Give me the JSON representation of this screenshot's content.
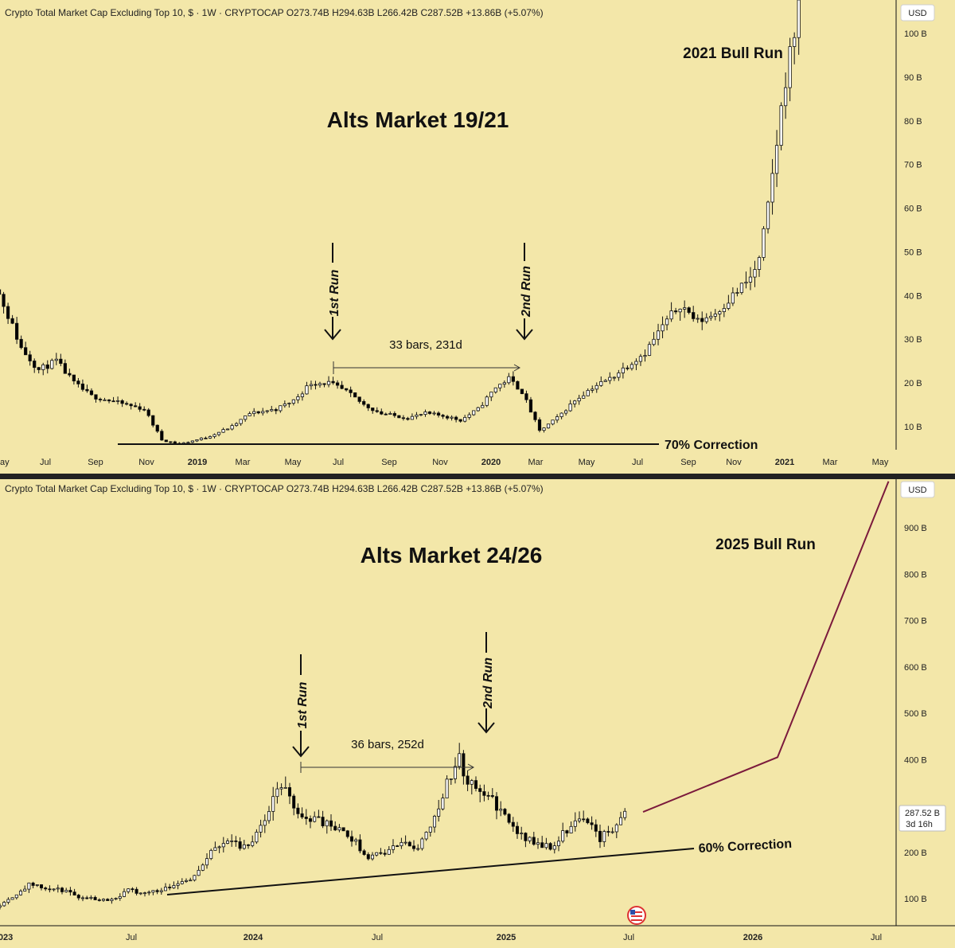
{
  "colors": {
    "bg": "#f3e7a9",
    "candle_up": "#ffffff",
    "candle_down": "#000000",
    "projection": "#7b1a3c"
  },
  "chart_data": [
    {
      "type": "candlestick",
      "header": "Crypto Total Market Cap Excluding Top 10, $ · 1W · CRYPTOCAP  O273.74B  H294.63B  L266.42B  C287.52B  +13.86B (+5.07%)",
      "currency_label": "USD",
      "title": "Alts Market 19/21",
      "annotations": {
        "bull_run": "2021 Bull Run",
        "first_run": "1st Run",
        "second_run": "2nd Run",
        "measure": "33 bars, 231d",
        "correction": "70% Correction"
      },
      "y_ticks": [
        "10 B",
        "20 B",
        "30 B",
        "40 B",
        "50 B",
        "60 B",
        "70 B",
        "80 B",
        "90 B",
        "100 B"
      ],
      "y_tick_values": [
        10,
        20,
        30,
        40,
        50,
        60,
        70,
        80,
        90,
        100
      ],
      "x_ticks": [
        "ay",
        "Jul",
        "Sep",
        "Nov",
        "2019",
        "Mar",
        "May",
        "Jul",
        "Sep",
        "Nov",
        "2020",
        "Mar",
        "May",
        "Jul",
        "Sep",
        "Nov",
        "2021",
        "Mar",
        "May"
      ],
      "ylim": [
        4,
        104
      ],
      "bars": 166,
      "anchors": [
        [
          0,
          47
        ],
        [
          4,
          38
        ],
        [
          8,
          28
        ],
        [
          12,
          23
        ],
        [
          16,
          25
        ],
        [
          20,
          20
        ],
        [
          24,
          17
        ],
        [
          28,
          16
        ],
        [
          32,
          15
        ],
        [
          36,
          14
        ],
        [
          40,
          7
        ],
        [
          44,
          6
        ],
        [
          50,
          7.5
        ],
        [
          56,
          10
        ],
        [
          60,
          13
        ],
        [
          66,
          14
        ],
        [
          70,
          16
        ],
        [
          74,
          20
        ],
        [
          78,
          20
        ],
        [
          82,
          18
        ],
        [
          86,
          15
        ],
        [
          90,
          13
        ],
        [
          96,
          12
        ],
        [
          100,
          13
        ],
        [
          104,
          12.5
        ],
        [
          108,
          11.5
        ],
        [
          112,
          14
        ],
        [
          116,
          19
        ],
        [
          119,
          21
        ],
        [
          122,
          18
        ],
        [
          126,
          9
        ],
        [
          130,
          12
        ],
        [
          134,
          16
        ],
        [
          138,
          19
        ],
        [
          142,
          21
        ],
        [
          146,
          24
        ],
        [
          150,
          27
        ],
        [
          154,
          33
        ],
        [
          158,
          38
        ],
        [
          162,
          34
        ],
        [
          166,
          36
        ],
        [
          170,
          40
        ],
        [
          174,
          44
        ],
        [
          176,
          48
        ],
        [
          178,
          60
        ],
        [
          180,
          75
        ],
        [
          182,
          90
        ],
        [
          184,
          100
        ],
        [
          186,
          140
        ]
      ],
      "ohlc_note": "Weekly candles May 2018 – Feb 2021; values approximate, billions USD"
    },
    {
      "type": "candlestick",
      "header": "Crypto Total Market Cap Excluding Top 10, $ · 1W · CRYPTOCAP  O273.74B  H294.63B  L266.42B  C287.52B  +13.86B (+5.07%)",
      "currency_label": "USD",
      "title": "Alts Market 24/26",
      "annotations": {
        "bull_run": "2025 Bull Run",
        "first_run": "1st Run",
        "second_run": "2nd Run",
        "measure": "36 bars, 252d",
        "correction": "60% Correction"
      },
      "last_price": "287.52 B",
      "countdown": "3d 16h",
      "y_ticks": [
        "100 B",
        "200 B",
        "300 B",
        "400 B",
        "500 B",
        "600 B",
        "700 B",
        "800 B",
        "900 B"
      ],
      "y_tick_values": [
        100,
        200,
        300,
        400,
        500,
        600,
        700,
        800,
        900
      ],
      "x_ticks": [
        "2023",
        "Jul",
        "2024",
        "Jul",
        "2025",
        "Jul",
        "2026",
        "Jul"
      ],
      "ylim": [
        50,
        1000
      ],
      "projection": [
        [
          2025.54,
          287
        ],
        [
          2026.1,
          405
        ],
        [
          2026.55,
          1000
        ]
      ],
      "anchors": [
        [
          0,
          82
        ],
        [
          4,
          105
        ],
        [
          8,
          130
        ],
        [
          12,
          122
        ],
        [
          16,
          118
        ],
        [
          20,
          105
        ],
        [
          24,
          100
        ],
        [
          28,
          98
        ],
        [
          32,
          118
        ],
        [
          36,
          112
        ],
        [
          40,
          120
        ],
        [
          44,
          135
        ],
        [
          48,
          148
        ],
        [
          52,
          200
        ],
        [
          56,
          230
        ],
        [
          60,
          210
        ],
        [
          64,
          250
        ],
        [
          66,
          290
        ],
        [
          68,
          340
        ],
        [
          70,
          330
        ],
        [
          74,
          275
        ],
        [
          78,
          270
        ],
        [
          82,
          250
        ],
        [
          86,
          230
        ],
        [
          90,
          190
        ],
        [
          94,
          200
        ],
        [
          98,
          220
        ],
        [
          102,
          210
        ],
        [
          106,
          280
        ],
        [
          110,
          370
        ],
        [
          112,
          400
        ],
        [
          114,
          350
        ],
        [
          118,
          330
        ],
        [
          122,
          290
        ],
        [
          126,
          240
        ],
        [
          130,
          220
        ],
        [
          134,
          210
        ],
        [
          138,
          250
        ],
        [
          142,
          280
        ],
        [
          146,
          230
        ],
        [
          150,
          260
        ],
        [
          152,
          285
        ]
      ],
      "ohlc_note": "Weekly candles Jan 2023 – Jul 2025; values approximate, billions USD"
    }
  ]
}
